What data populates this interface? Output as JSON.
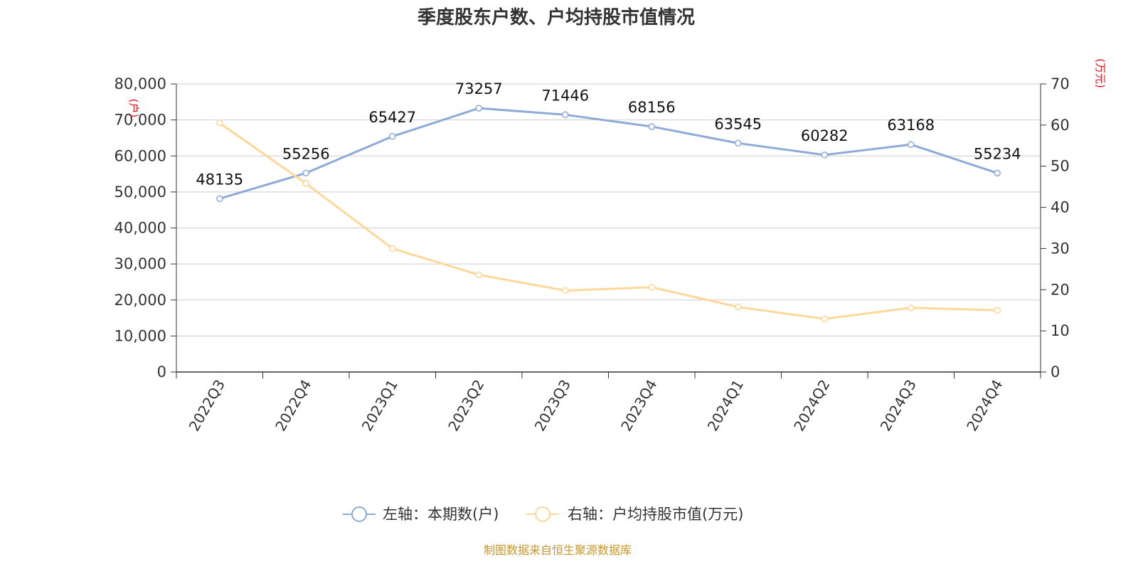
{
  "title": "季度股东户数、户均持股市值情况",
  "source": "制图数据来自恒生聚源数据库",
  "colors": {
    "left_series": "#8eaad8",
    "right_series": "#fdd89a",
    "grid": "#cccccc",
    "axis": "#333333",
    "unit": "#e8141b",
    "source": "#c8962c"
  },
  "chart_data": {
    "type": "line",
    "categories": [
      "2022Q3",
      "2022Q4",
      "2023Q1",
      "2023Q2",
      "2023Q3",
      "2023Q4",
      "2024Q1",
      "2024Q2",
      "2024Q3",
      "2024Q4"
    ],
    "y_left": {
      "unit": "(户)",
      "min": 0,
      "max": 80000,
      "ticks": [
        "0",
        "10,000",
        "20,000",
        "30,000",
        "40,000",
        "50,000",
        "60,000",
        "70,000",
        "80,000"
      ]
    },
    "y_right": {
      "unit": "(万元)",
      "min": 0,
      "max": 70,
      "ticks": [
        "0",
        "10",
        "20",
        "30",
        "40",
        "50",
        "60",
        "70"
      ]
    },
    "grid": true,
    "legend_position": "bottom-center",
    "series": [
      {
        "name": "左轴：本期数(户)",
        "axis": "left",
        "values": [
          48135,
          55256,
          65427,
          73257,
          71446,
          68156,
          63545,
          60282,
          63168,
          55234
        ],
        "labels": [
          "48135",
          "55256",
          "65427",
          "73257",
          "71446",
          "68156",
          "63545",
          "60282",
          "63168",
          "55234"
        ]
      },
      {
        "name": "右轴：户均持股市值(万元)",
        "axis": "right",
        "values": [
          60.5,
          45.8,
          30.0,
          23.6,
          19.8,
          20.6,
          15.8,
          12.9,
          15.6,
          15.0
        ]
      }
    ]
  }
}
